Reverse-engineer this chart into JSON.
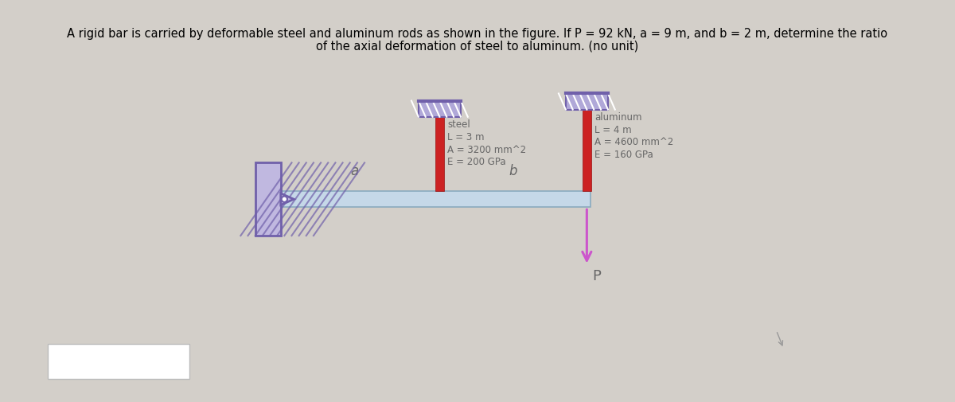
{
  "title_line1": "A rigid bar is carried by deformable steel and aluminum rods as shown in the figure. If P = 92 kN, a = 9 m, and b = 2 m, determine the ratio",
  "title_line2": "of the axial deformation of steel to aluminum. (no unit)",
  "bg_color": "#d3cfc9",
  "bar_color": "#c5d8e8",
  "bar_outline_color": "#8aaabf",
  "rod_color": "#cc2222",
  "hatch_fill_color": "#b0a8d8",
  "hatch_outline_color": "#7060aa",
  "wall_fill_color": "#c0b8e0",
  "wall_outline_color": "#7060aa",
  "arrow_color": "#cc55cc",
  "text_color": "#666666",
  "steel_label": "steel",
  "steel_L": "L = 3 m",
  "steel_A": "A = 3200 mm^2",
  "steel_E": "E = 200 GPa",
  "alum_label": "aluminum",
  "alum_L": "L = 4 m",
  "alum_A": "A = 4600 mm^2",
  "alum_E": "E = 160 GPa",
  "label_a": "a",
  "label_b": "b",
  "label_P": "P",
  "fig_width": 12.0,
  "fig_height": 5.05
}
